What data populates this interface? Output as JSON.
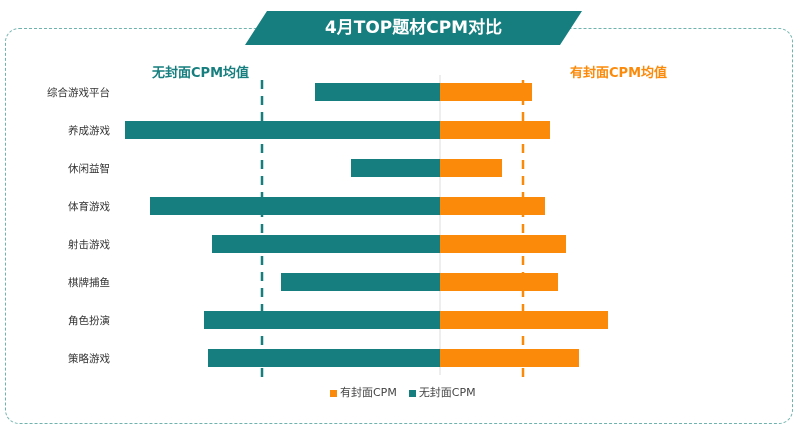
{
  "chart_data": {
    "type": "bar",
    "orientation": "horizontal-diverging",
    "title": "4月TOP题材CPM对比",
    "categories": [
      "综合游戏平台",
      "养成游戏",
      "休闲益智",
      "体育游戏",
      "射击游戏",
      "棋牌捕鱼",
      "角色扮演",
      "策略游戏"
    ],
    "series": [
      {
        "name": "有封面CPM",
        "color": "#fb8a0a",
        "direction": "right",
        "values": [
          92,
          110,
          62,
          105,
          126,
          118,
          168,
          139
        ]
      },
      {
        "name": "无封面CPM",
        "color": "#167e7e",
        "direction": "left",
        "values": [
          125,
          315,
          89,
          290,
          228,
          159,
          236,
          232
        ]
      }
    ],
    "reference_lines": [
      {
        "label": "无封面CPM均值",
        "color": "#167e7e",
        "value": 178,
        "side": "left"
      },
      {
        "label": "有封面CPM均值",
        "color": "#fb8a0a",
        "value": 83,
        "side": "right"
      }
    ],
    "axis_labels_shown": false,
    "grid": false,
    "legend_position": "bottom"
  }
}
